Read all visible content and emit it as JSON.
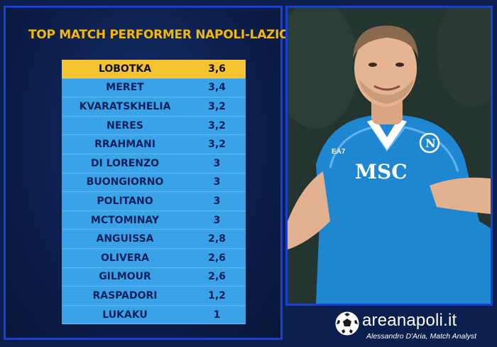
{
  "title": "TOP MATCH PERFORMER NAPOLI-LAZIO",
  "ranking": [
    {
      "name": "LOBOTKA",
      "score": "3,6"
    },
    {
      "name": "MERET",
      "score": "3,4"
    },
    {
      "name": "KVARATSKHELIA",
      "score": "3,2"
    },
    {
      "name": "NERES",
      "score": "3,2"
    },
    {
      "name": "RRAHMANI",
      "score": "3,2"
    },
    {
      "name": "DI LORENZO",
      "score": "3"
    },
    {
      "name": "BUONGIORNO",
      "score": "3"
    },
    {
      "name": "POLITANO",
      "score": "3"
    },
    {
      "name": "MCTOMINAY",
      "score": "3"
    },
    {
      "name": "ANGUISSA",
      "score": "2,8"
    },
    {
      "name": "OLIVERA",
      "score": "2,6"
    },
    {
      "name": "GILMOUR",
      "score": "2,6"
    },
    {
      "name": "RASPADORI",
      "score": "1,2"
    },
    {
      "name": "LUKAKU",
      "score": "1"
    }
  ],
  "jersey": {
    "sponsor": "MSC",
    "brand": "EA7"
  },
  "brand": {
    "name": "areanapoli.it",
    "credit": "Alessandro D'Aria, Match Analyst"
  },
  "colors": {
    "background": "#0a1f4d",
    "border": "#1a3fd6",
    "title": "#f5b800",
    "row": "#3aa3e8",
    "top_row": "#f7c431"
  }
}
